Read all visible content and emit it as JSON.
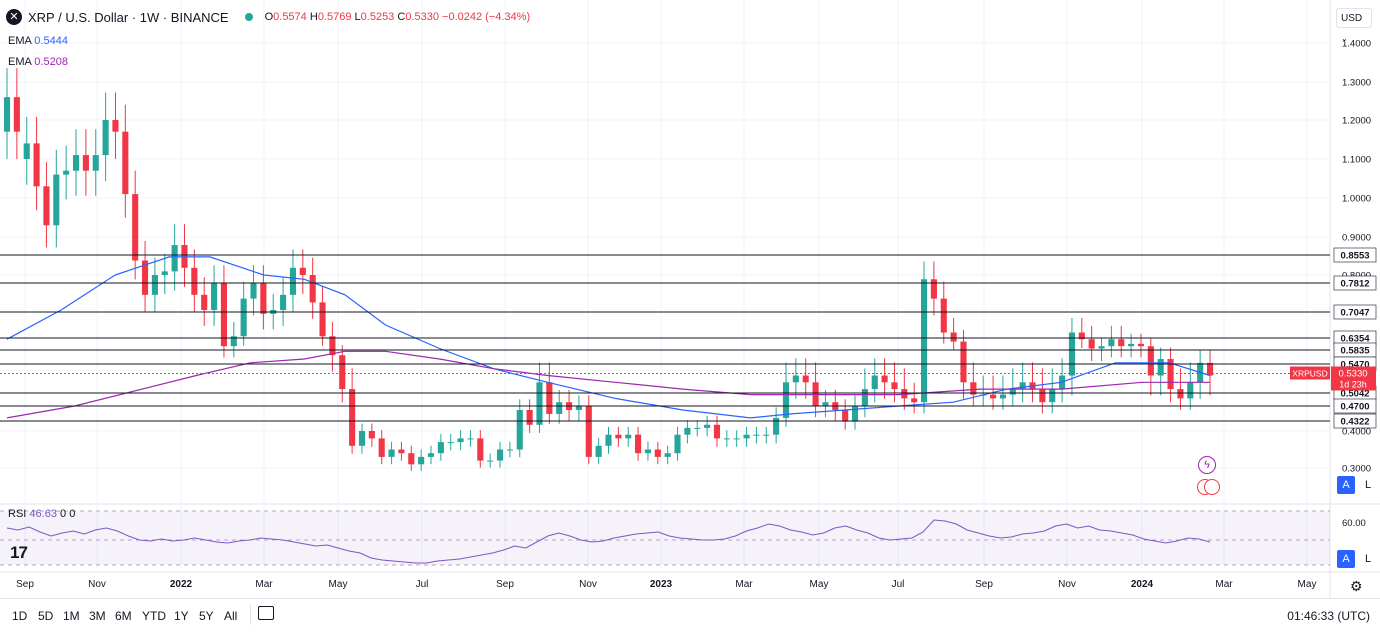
{
  "header": {
    "symbol_title": "XRP / U.S. Dollar · 1W · BINANCE",
    "o_label": "O",
    "o_value": "0.5574",
    "h_label": "H",
    "h_value": "0.5769",
    "l_label": "L",
    "l_value": "0.5253",
    "c_label": "C",
    "c_value": "0.5330",
    "change": "−0.0242 (−4.34%)"
  },
  "indicators": {
    "ema1_label": "EMA",
    "ema1_value": "0.5444",
    "ema2_label": "EMA",
    "ema2_value": "0.5208",
    "rsi_label": "RSI",
    "rsi_value": "46.63",
    "rsi_extra1": "0",
    "rsi_extra2": "0"
  },
  "price_axis": {
    "currency_button": "USD",
    "auto_button": "A",
    "log_button": "L"
  },
  "timeframes": [
    "1D",
    "5D",
    "1M",
    "3M",
    "6M",
    "YTD",
    "1Y",
    "5Y",
    "All"
  ],
  "clock": "01:46:33 (UTC)",
  "colors": {
    "up": "#26a69a",
    "down": "#f23645",
    "ema_fast": "#2962ff",
    "ema_slow": "#9c27b0",
    "rsi_line": "#7e57c2",
    "level_line": "#131722"
  },
  "chart_data": {
    "type": "candlestick",
    "symbol": "XRPUSD",
    "interval": "1W",
    "x_tick_labels": [
      "Sep",
      "Nov",
      "2022",
      "Mar",
      "May",
      "Jul",
      "Sep",
      "Nov",
      "2023",
      "Mar",
      "May",
      "Jul",
      "Sep",
      "Nov",
      "2024",
      "Mar",
      "May"
    ],
    "y_tick_labels": [
      "1.4000",
      "1.3000",
      "1.2000",
      "1.1000",
      "1.0000",
      "0.9000",
      "0.8000",
      "0.4000",
      "0.3000"
    ],
    "ylim": [
      0.27,
      1.42
    ],
    "price_levels": [
      0.8553,
      0.7812,
      0.7047,
      0.6354,
      0.5835,
      0.547,
      0.5042,
      0.47,
      0.4322
    ],
    "price_label": {
      "symbol": "XRPUSD",
      "value": "0.5330",
      "countdown": "1d 23h"
    },
    "candles_oc": [
      [
        1.17,
        1.26
      ],
      [
        1.26,
        1.17
      ],
      [
        1.1,
        1.14
      ],
      [
        1.14,
        1.03
      ],
      [
        1.03,
        0.93
      ],
      [
        0.93,
        1.06
      ],
      [
        1.06,
        1.07
      ],
      [
        1.07,
        1.11
      ],
      [
        1.11,
        1.07
      ],
      [
        1.07,
        1.11
      ],
      [
        1.11,
        1.2
      ],
      [
        1.2,
        1.17
      ],
      [
        1.17,
        1.01
      ],
      [
        1.01,
        0.84
      ],
      [
        0.84,
        0.75
      ],
      [
        0.75,
        0.8
      ],
      [
        0.8,
        0.81
      ],
      [
        0.81,
        0.88
      ],
      [
        0.88,
        0.82
      ],
      [
        0.82,
        0.75
      ],
      [
        0.75,
        0.71
      ],
      [
        0.71,
        0.78
      ],
      [
        0.78,
        0.6
      ],
      [
        0.6,
        0.64
      ],
      [
        0.64,
        0.74
      ],
      [
        0.74,
        0.78
      ],
      [
        0.78,
        0.7
      ],
      [
        0.7,
        0.71
      ],
      [
        0.71,
        0.75
      ],
      [
        0.75,
        0.82
      ],
      [
        0.82,
        0.8
      ],
      [
        0.8,
        0.73
      ],
      [
        0.73,
        0.64
      ],
      [
        0.64,
        0.57
      ],
      [
        0.57,
        0.51
      ],
      [
        0.51,
        0.36
      ],
      [
        0.36,
        0.4
      ],
      [
        0.4,
        0.38
      ],
      [
        0.38,
        0.33
      ],
      [
        0.33,
        0.35
      ],
      [
        0.35,
        0.34
      ],
      [
        0.34,
        0.31
      ],
      [
        0.31,
        0.33
      ],
      [
        0.33,
        0.34
      ],
      [
        0.34,
        0.37
      ],
      [
        0.37,
        0.37
      ],
      [
        0.37,
        0.38
      ],
      [
        0.38,
        0.38
      ],
      [
        0.38,
        0.32
      ],
      [
        0.32,
        0.32
      ],
      [
        0.32,
        0.35
      ],
      [
        0.35,
        0.35
      ],
      [
        0.35,
        0.46
      ],
      [
        0.46,
        0.42
      ],
      [
        0.42,
        0.52
      ],
      [
        0.52,
        0.45
      ],
      [
        0.45,
        0.48
      ],
      [
        0.48,
        0.46
      ],
      [
        0.46,
        0.47
      ],
      [
        0.47,
        0.33
      ],
      [
        0.33,
        0.36
      ],
      [
        0.36,
        0.39
      ],
      [
        0.39,
        0.38
      ],
      [
        0.38,
        0.39
      ],
      [
        0.39,
        0.34
      ],
      [
        0.34,
        0.35
      ],
      [
        0.35,
        0.33
      ],
      [
        0.33,
        0.34
      ],
      [
        0.34,
        0.39
      ],
      [
        0.39,
        0.41
      ],
      [
        0.41,
        0.41
      ],
      [
        0.41,
        0.42
      ],
      [
        0.42,
        0.38
      ],
      [
        0.38,
        0.38
      ],
      [
        0.38,
        0.38
      ],
      [
        0.38,
        0.39
      ],
      [
        0.39,
        0.39
      ],
      [
        0.39,
        0.39
      ],
      [
        0.39,
        0.44
      ],
      [
        0.44,
        0.52
      ],
      [
        0.52,
        0.53
      ],
      [
        0.53,
        0.52
      ],
      [
        0.52,
        0.47
      ],
      [
        0.47,
        0.48
      ],
      [
        0.48,
        0.46
      ],
      [
        0.46,
        0.43
      ],
      [
        0.43,
        0.47
      ],
      [
        0.47,
        0.51
      ],
      [
        0.51,
        0.53
      ],
      [
        0.53,
        0.52
      ],
      [
        0.52,
        0.51
      ],
      [
        0.51,
        0.49
      ],
      [
        0.49,
        0.48
      ],
      [
        0.48,
        0.79
      ],
      [
        0.79,
        0.74
      ],
      [
        0.74,
        0.65
      ],
      [
        0.65,
        0.62
      ],
      [
        0.62,
        0.52
      ],
      [
        0.52,
        0.5
      ],
      [
        0.5,
        0.5
      ],
      [
        0.5,
        0.49
      ],
      [
        0.49,
        0.5
      ],
      [
        0.5,
        0.51
      ],
      [
        0.51,
        0.52
      ],
      [
        0.52,
        0.51
      ],
      [
        0.51,
        0.48
      ],
      [
        0.48,
        0.51
      ],
      [
        0.51,
        0.53
      ],
      [
        0.53,
        0.65
      ],
      [
        0.65,
        0.63
      ],
      [
        0.63,
        0.59
      ],
      [
        0.59,
        0.6
      ],
      [
        0.6,
        0.63
      ],
      [
        0.63,
        0.6
      ],
      [
        0.6,
        0.61
      ],
      [
        0.61,
        0.6
      ],
      [
        0.6,
        0.53
      ],
      [
        0.53,
        0.56
      ],
      [
        0.56,
        0.51
      ],
      [
        0.51,
        0.49
      ],
      [
        0.49,
        0.52
      ],
      [
        0.52,
        0.55
      ],
      [
        0.55,
        0.53
      ]
    ],
    "ema_fast_points": [
      [
        0.0,
        0.63
      ],
      [
        0.04,
        0.71
      ],
      [
        0.08,
        0.8
      ],
      [
        0.12,
        0.85
      ],
      [
        0.15,
        0.85
      ],
      [
        0.19,
        0.8
      ],
      [
        0.22,
        0.79
      ],
      [
        0.25,
        0.75
      ],
      [
        0.28,
        0.67
      ],
      [
        0.32,
        0.59
      ],
      [
        0.36,
        0.54
      ],
      [
        0.4,
        0.52
      ],
      [
        0.45,
        0.49
      ],
      [
        0.5,
        0.46
      ],
      [
        0.55,
        0.44
      ],
      [
        0.58,
        0.45
      ],
      [
        0.62,
        0.46
      ],
      [
        0.66,
        0.47
      ],
      [
        0.7,
        0.48
      ],
      [
        0.74,
        0.51
      ],
      [
        0.78,
        0.52
      ],
      [
        0.82,
        0.55
      ],
      [
        0.86,
        0.55
      ],
      [
        0.89,
        0.53
      ]
    ],
    "ema_slow_points": [
      [
        0.0,
        0.44
      ],
      [
        0.05,
        0.47
      ],
      [
        0.1,
        0.51
      ],
      [
        0.14,
        0.53
      ],
      [
        0.18,
        0.55
      ],
      [
        0.22,
        0.56
      ],
      [
        0.25,
        0.58
      ],
      [
        0.28,
        0.58
      ],
      [
        0.32,
        0.56
      ],
      [
        0.36,
        0.54
      ],
      [
        0.4,
        0.53
      ],
      [
        0.45,
        0.52
      ],
      [
        0.5,
        0.51
      ],
      [
        0.55,
        0.5
      ],
      [
        0.6,
        0.5
      ],
      [
        0.66,
        0.5
      ],
      [
        0.72,
        0.51
      ],
      [
        0.78,
        0.51
      ],
      [
        0.84,
        0.52
      ],
      [
        0.89,
        0.52
      ]
    ],
    "rsi": {
      "ylim": [
        20,
        80
      ],
      "tick_label": "60.00",
      "values": [
        60,
        58,
        61,
        56,
        52,
        55,
        57,
        54,
        58,
        60,
        57,
        52,
        48,
        47,
        49,
        47,
        48,
        50,
        48,
        46,
        45,
        47,
        48,
        50,
        49,
        48,
        46,
        44,
        42,
        43,
        40,
        37,
        35,
        30,
        28,
        27,
        26,
        25,
        25,
        27,
        28,
        29,
        31,
        33,
        35,
        38,
        42,
        40,
        46,
        52,
        55,
        52,
        48,
        46,
        47,
        50,
        52,
        54,
        55,
        56,
        52,
        50,
        49,
        48,
        48,
        49,
        52,
        57,
        60,
        64,
        62,
        58,
        56,
        53,
        55,
        60,
        62,
        58,
        55,
        50,
        48,
        49,
        50,
        56,
        68,
        67,
        64,
        58,
        55,
        52,
        50,
        51,
        54,
        55,
        57,
        62,
        64,
        60,
        62,
        58,
        57,
        55,
        53,
        49,
        47,
        45,
        47,
        50,
        49,
        46
      ]
    }
  }
}
